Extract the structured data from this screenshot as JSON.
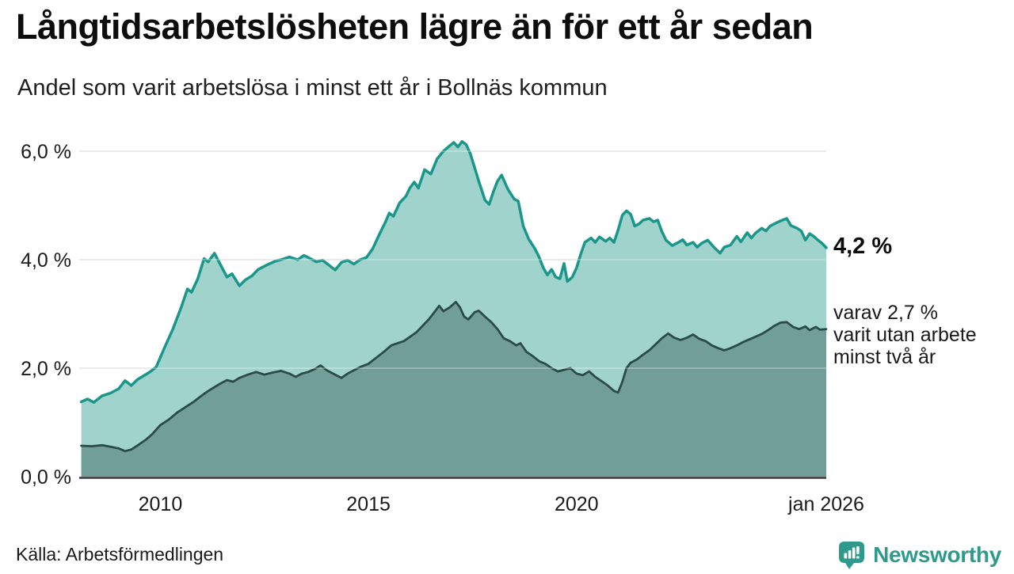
{
  "header": {
    "title": "Långtidsarbetslösheten lägre än för ett år sedan",
    "subtitle": "Andel som varit arbetslösa i minst ett år i Bollnäs kommun"
  },
  "footer": {
    "source": "Källa: Arbetsförmedlingen",
    "brand": "Newsworthy",
    "brand_color": "#2f9a8c",
    "logo_icon": "bar-chart-speech-bubble-icon"
  },
  "chart_data": {
    "type": "area",
    "title": "Långtidsarbetslösheten lägre än för ett år sedan",
    "subtitle": "Andel som varit arbetslösa i minst ett år i Bollnäs kommun",
    "legend_position": "none",
    "grid": true,
    "x_axis": {
      "min": 2008.05,
      "max": 2026.0,
      "ticks": [
        {
          "label": "2010",
          "year": 2010
        },
        {
          "label": "2015",
          "year": 2015
        },
        {
          "label": "2020",
          "year": 2020
        },
        {
          "label": "jan 2026",
          "year": 2026
        }
      ]
    },
    "y_axis": {
      "min": 0,
      "max": 6.5,
      "unit": "%",
      "ticks": [
        {
          "label": "6,0 %",
          "value": 6
        },
        {
          "label": "4,0 %",
          "value": 4
        },
        {
          "label": "2,0 %",
          "value": 2
        },
        {
          "label": "0,0 %",
          "value": 0
        }
      ]
    },
    "series": [
      {
        "name": "Arbetslösa minst ett år",
        "line_color": "#1b968a",
        "fill_color": "#a0d3cc",
        "line_width": 3.5,
        "points": [
          [
            2008.1,
            1.38
          ],
          [
            2008.25,
            1.43
          ],
          [
            2008.4,
            1.37
          ],
          [
            2008.6,
            1.49
          ],
          [
            2008.8,
            1.54
          ],
          [
            2009.0,
            1.62
          ],
          [
            2009.15,
            1.77
          ],
          [
            2009.3,
            1.68
          ],
          [
            2009.45,
            1.79
          ],
          [
            2009.6,
            1.86
          ],
          [
            2009.75,
            1.93
          ],
          [
            2009.9,
            2.02
          ],
          [
            2010.1,
            2.38
          ],
          [
            2010.3,
            2.72
          ],
          [
            2010.5,
            3.12
          ],
          [
            2010.65,
            3.46
          ],
          [
            2010.75,
            3.4
          ],
          [
            2010.9,
            3.65
          ],
          [
            2011.05,
            4.02
          ],
          [
            2011.15,
            3.96
          ],
          [
            2011.3,
            4.12
          ],
          [
            2011.45,
            3.9
          ],
          [
            2011.6,
            3.68
          ],
          [
            2011.72,
            3.74
          ],
          [
            2011.9,
            3.52
          ],
          [
            2012.05,
            3.63
          ],
          [
            2012.2,
            3.7
          ],
          [
            2012.35,
            3.82
          ],
          [
            2012.55,
            3.9
          ],
          [
            2012.75,
            3.97
          ],
          [
            2012.9,
            4.0
          ],
          [
            2013.1,
            4.05
          ],
          [
            2013.3,
            4.0
          ],
          [
            2013.45,
            4.08
          ],
          [
            2013.6,
            4.02
          ],
          [
            2013.75,
            3.96
          ],
          [
            2013.9,
            3.99
          ],
          [
            2014.05,
            3.9
          ],
          [
            2014.2,
            3.81
          ],
          [
            2014.35,
            3.95
          ],
          [
            2014.5,
            3.99
          ],
          [
            2014.65,
            3.92
          ],
          [
            2014.8,
            4.0
          ],
          [
            2014.95,
            4.04
          ],
          [
            2015.1,
            4.2
          ],
          [
            2015.25,
            4.45
          ],
          [
            2015.4,
            4.68
          ],
          [
            2015.5,
            4.86
          ],
          [
            2015.6,
            4.8
          ],
          [
            2015.75,
            5.05
          ],
          [
            2015.9,
            5.17
          ],
          [
            2016.0,
            5.33
          ],
          [
            2016.1,
            5.43
          ],
          [
            2016.2,
            5.32
          ],
          [
            2016.35,
            5.66
          ],
          [
            2016.5,
            5.58
          ],
          [
            2016.65,
            5.86
          ],
          [
            2016.8,
            6.0
          ],
          [
            2016.95,
            6.1
          ],
          [
            2017.05,
            6.16
          ],
          [
            2017.15,
            6.08
          ],
          [
            2017.25,
            6.18
          ],
          [
            2017.35,
            6.12
          ],
          [
            2017.45,
            5.95
          ],
          [
            2017.55,
            5.7
          ],
          [
            2017.65,
            5.45
          ],
          [
            2017.8,
            5.1
          ],
          [
            2017.9,
            5.02
          ],
          [
            2018.0,
            5.25
          ],
          [
            2018.1,
            5.45
          ],
          [
            2018.2,
            5.56
          ],
          [
            2018.35,
            5.3
          ],
          [
            2018.5,
            5.12
          ],
          [
            2018.6,
            5.08
          ],
          [
            2018.72,
            4.62
          ],
          [
            2018.85,
            4.38
          ],
          [
            2019.0,
            4.2
          ],
          [
            2019.1,
            4.05
          ],
          [
            2019.2,
            3.85
          ],
          [
            2019.3,
            3.72
          ],
          [
            2019.4,
            3.82
          ],
          [
            2019.5,
            3.68
          ],
          [
            2019.6,
            3.65
          ],
          [
            2019.7,
            3.93
          ],
          [
            2019.78,
            3.6
          ],
          [
            2019.9,
            3.68
          ],
          [
            2020.0,
            3.85
          ],
          [
            2020.1,
            4.1
          ],
          [
            2020.2,
            4.32
          ],
          [
            2020.35,
            4.4
          ],
          [
            2020.45,
            4.32
          ],
          [
            2020.55,
            4.42
          ],
          [
            2020.7,
            4.34
          ],
          [
            2020.8,
            4.4
          ],
          [
            2020.9,
            4.32
          ],
          [
            2021.0,
            4.55
          ],
          [
            2021.1,
            4.82
          ],
          [
            2021.2,
            4.9
          ],
          [
            2021.3,
            4.84
          ],
          [
            2021.4,
            4.62
          ],
          [
            2021.5,
            4.66
          ],
          [
            2021.6,
            4.73
          ],
          [
            2021.75,
            4.76
          ],
          [
            2021.85,
            4.7
          ],
          [
            2021.95,
            4.73
          ],
          [
            2022.05,
            4.52
          ],
          [
            2022.15,
            4.36
          ],
          [
            2022.3,
            4.26
          ],
          [
            2022.45,
            4.32
          ],
          [
            2022.55,
            4.37
          ],
          [
            2022.65,
            4.27
          ],
          [
            2022.8,
            4.32
          ],
          [
            2022.9,
            4.23
          ],
          [
            2023.0,
            4.3
          ],
          [
            2023.15,
            4.36
          ],
          [
            2023.3,
            4.23
          ],
          [
            2023.45,
            4.12
          ],
          [
            2023.55,
            4.23
          ],
          [
            2023.7,
            4.27
          ],
          [
            2023.85,
            4.43
          ],
          [
            2023.95,
            4.33
          ],
          [
            2024.1,
            4.5
          ],
          [
            2024.2,
            4.4
          ],
          [
            2024.3,
            4.49
          ],
          [
            2024.45,
            4.58
          ],
          [
            2024.55,
            4.53
          ],
          [
            2024.65,
            4.62
          ],
          [
            2024.8,
            4.68
          ],
          [
            2024.95,
            4.73
          ],
          [
            2025.05,
            4.76
          ],
          [
            2025.15,
            4.63
          ],
          [
            2025.3,
            4.58
          ],
          [
            2025.4,
            4.53
          ],
          [
            2025.5,
            4.36
          ],
          [
            2025.6,
            4.48
          ],
          [
            2025.7,
            4.43
          ],
          [
            2025.8,
            4.36
          ],
          [
            2025.9,
            4.3
          ],
          [
            2026.0,
            4.22
          ]
        ]
      },
      {
        "name": "varav utan arbete minst två år",
        "line_color": "#2a4b46",
        "fill_color": "#719e99",
        "line_width": 2.8,
        "points": [
          [
            2008.1,
            0.57
          ],
          [
            2008.35,
            0.56
          ],
          [
            2008.6,
            0.58
          ],
          [
            2008.8,
            0.55
          ],
          [
            2009.0,
            0.52
          ],
          [
            2009.15,
            0.47
          ],
          [
            2009.3,
            0.5
          ],
          [
            2009.5,
            0.6
          ],
          [
            2009.65,
            0.68
          ],
          [
            2009.8,
            0.78
          ],
          [
            2010.0,
            0.95
          ],
          [
            2010.2,
            1.05
          ],
          [
            2010.4,
            1.18
          ],
          [
            2010.6,
            1.28
          ],
          [
            2010.8,
            1.38
          ],
          [
            2011.0,
            1.5
          ],
          [
            2011.15,
            1.58
          ],
          [
            2011.3,
            1.65
          ],
          [
            2011.45,
            1.72
          ],
          [
            2011.6,
            1.78
          ],
          [
            2011.75,
            1.75
          ],
          [
            2011.9,
            1.82
          ],
          [
            2012.1,
            1.88
          ],
          [
            2012.3,
            1.93
          ],
          [
            2012.5,
            1.88
          ],
          [
            2012.7,
            1.92
          ],
          [
            2012.9,
            1.95
          ],
          [
            2013.1,
            1.9
          ],
          [
            2013.25,
            1.84
          ],
          [
            2013.4,
            1.9
          ],
          [
            2013.55,
            1.93
          ],
          [
            2013.7,
            1.98
          ],
          [
            2013.85,
            2.05
          ],
          [
            2014.0,
            1.96
          ],
          [
            2014.2,
            1.88
          ],
          [
            2014.35,
            1.82
          ],
          [
            2014.5,
            1.9
          ],
          [
            2014.65,
            1.96
          ],
          [
            2014.8,
            2.02
          ],
          [
            2015.0,
            2.08
          ],
          [
            2015.2,
            2.2
          ],
          [
            2015.4,
            2.32
          ],
          [
            2015.55,
            2.42
          ],
          [
            2015.7,
            2.46
          ],
          [
            2015.85,
            2.5
          ],
          [
            2016.0,
            2.58
          ],
          [
            2016.15,
            2.66
          ],
          [
            2016.3,
            2.78
          ],
          [
            2016.45,
            2.9
          ],
          [
            2016.6,
            3.05
          ],
          [
            2016.7,
            3.15
          ],
          [
            2016.8,
            3.05
          ],
          [
            2016.95,
            3.12
          ],
          [
            2017.1,
            3.22
          ],
          [
            2017.2,
            3.12
          ],
          [
            2017.3,
            2.95
          ],
          [
            2017.4,
            2.9
          ],
          [
            2017.55,
            3.03
          ],
          [
            2017.65,
            3.06
          ],
          [
            2017.8,
            2.95
          ],
          [
            2017.95,
            2.85
          ],
          [
            2018.1,
            2.72
          ],
          [
            2018.25,
            2.55
          ],
          [
            2018.4,
            2.5
          ],
          [
            2018.55,
            2.42
          ],
          [
            2018.65,
            2.46
          ],
          [
            2018.8,
            2.3
          ],
          [
            2018.95,
            2.22
          ],
          [
            2019.1,
            2.13
          ],
          [
            2019.25,
            2.08
          ],
          [
            2019.4,
            2.0
          ],
          [
            2019.55,
            1.94
          ],
          [
            2019.7,
            1.97
          ],
          [
            2019.85,
            2.0
          ],
          [
            2020.0,
            1.9
          ],
          [
            2020.15,
            1.87
          ],
          [
            2020.3,
            1.94
          ],
          [
            2020.45,
            1.84
          ],
          [
            2020.6,
            1.76
          ],
          [
            2020.75,
            1.68
          ],
          [
            2020.9,
            1.58
          ],
          [
            2021.0,
            1.55
          ],
          [
            2021.1,
            1.75
          ],
          [
            2021.2,
            2.0
          ],
          [
            2021.3,
            2.1
          ],
          [
            2021.45,
            2.16
          ],
          [
            2021.6,
            2.25
          ],
          [
            2021.75,
            2.33
          ],
          [
            2021.9,
            2.44
          ],
          [
            2022.05,
            2.55
          ],
          [
            2022.2,
            2.64
          ],
          [
            2022.35,
            2.56
          ],
          [
            2022.5,
            2.52
          ],
          [
            2022.65,
            2.56
          ],
          [
            2022.8,
            2.62
          ],
          [
            2022.95,
            2.54
          ],
          [
            2023.1,
            2.5
          ],
          [
            2023.25,
            2.42
          ],
          [
            2023.4,
            2.37
          ],
          [
            2023.55,
            2.33
          ],
          [
            2023.7,
            2.37
          ],
          [
            2023.85,
            2.42
          ],
          [
            2024.0,
            2.48
          ],
          [
            2024.15,
            2.53
          ],
          [
            2024.3,
            2.58
          ],
          [
            2024.45,
            2.63
          ],
          [
            2024.6,
            2.7
          ],
          [
            2024.75,
            2.78
          ],
          [
            2024.9,
            2.84
          ],
          [
            2025.05,
            2.85
          ],
          [
            2025.2,
            2.76
          ],
          [
            2025.35,
            2.72
          ],
          [
            2025.5,
            2.77
          ],
          [
            2025.6,
            2.7
          ],
          [
            2025.75,
            2.76
          ],
          [
            2025.85,
            2.71
          ],
          [
            2026.0,
            2.72
          ]
        ]
      }
    ],
    "annotations": {
      "end_value_label": "4,2 %",
      "end_sub_lines": [
        "varav 2,7 %",
        "varit utan arbete",
        "minst två år"
      ]
    }
  }
}
